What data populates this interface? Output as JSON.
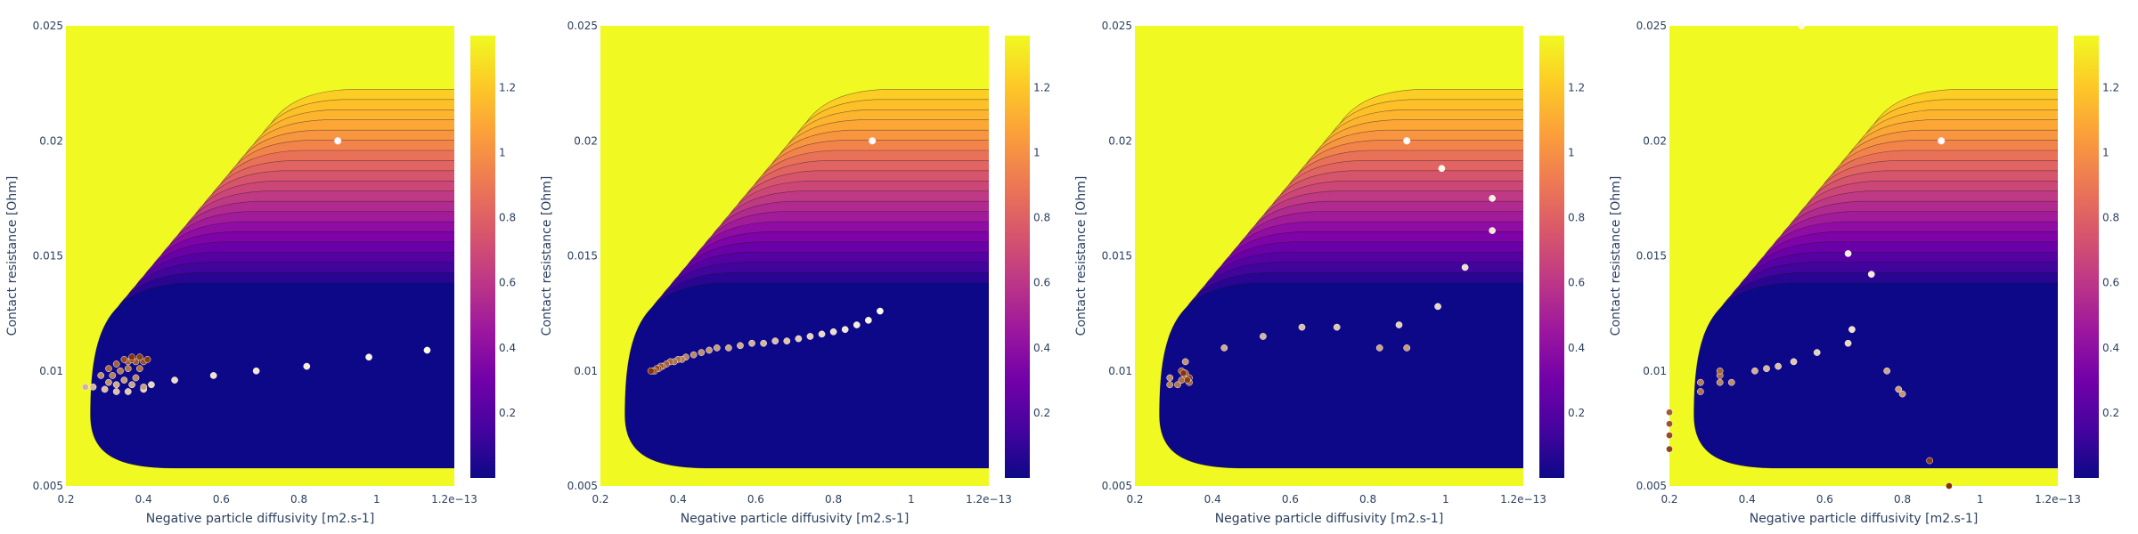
{
  "colors": {
    "contour_fills": [
      "#0d0887",
      "#2a0593",
      "#41049d",
      "#5601a4",
      "#6a00a8",
      "#7e03a8",
      "#8f0da4",
      "#a11b9b",
      "#b12a90",
      "#bf3984",
      "#cc4778",
      "#d6556d",
      "#e16462",
      "#e97158",
      "#f2844b",
      "#f89540",
      "#fca636",
      "#fdb42f",
      "#fec029",
      "#fcce25",
      "#f0f921"
    ],
    "colorbar": [
      "#0d0887",
      "#46039f",
      "#7201a8",
      "#9c179e",
      "#bd3786",
      "#d8576b",
      "#ed7953",
      "#fb9f3a",
      "#fdca26",
      "#f0f921"
    ],
    "axis_text": "#2a3f5f",
    "contour_line": "#1a1a1a"
  },
  "chart_data": [
    {
      "type": "contour-scatter",
      "xlabel": "Negative particle diffusivity [m2.s-1]",
      "ylabel": "Contact resistance [Ohm]",
      "xlim": [
        0.2,
        1.2
      ],
      "ylim": [
        0.005,
        0.025
      ],
      "x_ticks": [
        "0.2",
        "0.4",
        "0.6",
        "0.8",
        "1",
        "1.2e−13"
      ],
      "y_ticks": [
        "0.005",
        "0.01",
        "0.015",
        "0.02",
        "0.025"
      ],
      "colorbar_ticks": [
        "0.2",
        "0.4",
        "0.6",
        "0.8",
        "1",
        "1.2"
      ],
      "true_point": [
        0.9,
        0.02
      ],
      "points": [
        [
          1.13,
          0.0109
        ],
        [
          0.98,
          0.0106
        ],
        [
          0.82,
          0.0102
        ],
        [
          0.69,
          0.01
        ],
        [
          0.58,
          0.0098
        ],
        [
          0.48,
          0.0096
        ],
        [
          0.42,
          0.0094
        ],
        [
          0.4,
          0.0092
        ],
        [
          0.36,
          0.0091
        ],
        [
          0.33,
          0.0091
        ],
        [
          0.3,
          0.0092
        ],
        [
          0.27,
          0.0093
        ],
        [
          0.25,
          0.0093
        ],
        [
          0.33,
          0.0094
        ],
        [
          0.37,
          0.0094
        ],
        [
          0.4,
          0.0093
        ],
        [
          0.35,
          0.0096
        ],
        [
          0.31,
          0.0095
        ],
        [
          0.29,
          0.0098
        ],
        [
          0.38,
          0.0097
        ],
        [
          0.32,
          0.0098
        ],
        [
          0.34,
          0.01
        ],
        [
          0.36,
          0.0101
        ],
        [
          0.39,
          0.0101
        ],
        [
          0.31,
          0.0101
        ],
        [
          0.33,
          0.0103
        ],
        [
          0.36,
          0.0104
        ],
        [
          0.38,
          0.0104
        ],
        [
          0.4,
          0.0104
        ],
        [
          0.35,
          0.0105
        ],
        [
          0.37,
          0.0105
        ],
        [
          0.39,
          0.0106
        ],
        [
          0.41,
          0.0105
        ],
        [
          0.37,
          0.0106
        ]
      ]
    },
    {
      "type": "contour-scatter",
      "xlabel": "Negative particle diffusivity [m2.s-1]",
      "ylabel": "Contact resistance [Ohm]",
      "xlim": [
        0.2,
        1.2
      ],
      "ylim": [
        0.005,
        0.025
      ],
      "x_ticks": [
        "0.2",
        "0.4",
        "0.6",
        "0.8",
        "1",
        "1.2e−13"
      ],
      "y_ticks": [
        "0.005",
        "0.01",
        "0.015",
        "0.02",
        "0.025"
      ],
      "colorbar_ticks": [
        "0.2",
        "0.4",
        "0.6",
        "0.8",
        "1",
        "1.2"
      ],
      "true_point": [
        0.9,
        0.02
      ],
      "points": [
        [
          0.92,
          0.0126
        ],
        [
          0.89,
          0.0122
        ],
        [
          0.86,
          0.012
        ],
        [
          0.83,
          0.0118
        ],
        [
          0.8,
          0.0117
        ],
        [
          0.77,
          0.0116
        ],
        [
          0.74,
          0.0115
        ],
        [
          0.71,
          0.0114
        ],
        [
          0.68,
          0.0113
        ],
        [
          0.65,
          0.0113
        ],
        [
          0.62,
          0.0112
        ],
        [
          0.59,
          0.0112
        ],
        [
          0.56,
          0.0111
        ],
        [
          0.53,
          0.011
        ],
        [
          0.5,
          0.011
        ],
        [
          0.48,
          0.0109
        ],
        [
          0.46,
          0.0108
        ],
        [
          0.44,
          0.0107
        ],
        [
          0.42,
          0.0106
        ],
        [
          0.41,
          0.0105
        ],
        [
          0.4,
          0.0105
        ],
        [
          0.39,
          0.0104
        ],
        [
          0.38,
          0.0104
        ],
        [
          0.37,
          0.0103
        ],
        [
          0.36,
          0.0102
        ],
        [
          0.355,
          0.0102
        ],
        [
          0.35,
          0.0101
        ],
        [
          0.345,
          0.0101
        ],
        [
          0.34,
          0.01
        ],
        [
          0.335,
          0.01
        ],
        [
          0.33,
          0.01
        ]
      ]
    },
    {
      "type": "contour-scatter",
      "xlabel": "Negative particle diffusivity [m2.s-1]",
      "ylabel": "Contact resistance [Ohm]",
      "xlim": [
        0.2,
        1.2
      ],
      "ylim": [
        0.005,
        0.025
      ],
      "x_ticks": [
        "0.2",
        "0.4",
        "0.6",
        "0.8",
        "1",
        "1.2e−13"
      ],
      "y_ticks": [
        "0.005",
        "0.01",
        "0.015",
        "0.02",
        "0.025"
      ],
      "colorbar_ticks": [
        "0.2",
        "0.4",
        "0.6",
        "0.8",
        "1",
        "1.2"
      ],
      "true_point": [
        0.9,
        0.02
      ],
      "points": [
        [
          0.99,
          0.0188
        ],
        [
          1.12,
          0.0175
        ],
        [
          1.12,
          0.0161
        ],
        [
          1.05,
          0.0145
        ],
        [
          0.98,
          0.0128
        ],
        [
          0.88,
          0.012
        ],
        [
          0.72,
          0.0119
        ],
        [
          0.63,
          0.0119
        ],
        [
          0.53,
          0.0115
        ],
        [
          0.43,
          0.011
        ],
        [
          0.83,
          0.011
        ],
        [
          0.9,
          0.011
        ],
        [
          0.33,
          0.0104
        ],
        [
          0.29,
          0.0097
        ],
        [
          0.29,
          0.0094
        ],
        [
          0.31,
          0.0094
        ],
        [
          0.32,
          0.0096
        ],
        [
          0.34,
          0.0095
        ],
        [
          0.33,
          0.0098
        ],
        [
          0.32,
          0.01
        ],
        [
          0.33,
          0.0099
        ],
        [
          0.34,
          0.0097
        ],
        [
          0.335,
          0.0096
        ],
        [
          0.325,
          0.0099
        ]
      ]
    },
    {
      "type": "contour-scatter",
      "xlabel": "Negative particle diffusivity [m2.s-1]",
      "ylabel": "Contact resistance [Ohm]",
      "xlim": [
        0.2,
        1.2
      ],
      "ylim": [
        0.005,
        0.025
      ],
      "x_ticks": [
        "0.2",
        "0.4",
        "0.6",
        "0.8",
        "1",
        "1.2e−13"
      ],
      "y_ticks": [
        "0.005",
        "0.01",
        "0.015",
        "0.02",
        "0.025"
      ],
      "colorbar_ticks": [
        "0.2",
        "0.4",
        "0.6",
        "0.8",
        "1",
        "1.2"
      ],
      "true_point": [
        0.9,
        0.02
      ],
      "points": [
        [
          0.54,
          0.025
        ],
        [
          0.66,
          0.0151
        ],
        [
          0.72,
          0.0142
        ],
        [
          0.67,
          0.0118
        ],
        [
          0.66,
          0.0112
        ],
        [
          0.58,
          0.0108
        ],
        [
          0.52,
          0.0104
        ],
        [
          0.48,
          0.0102
        ],
        [
          0.45,
          0.0101
        ],
        [
          0.42,
          0.01
        ],
        [
          0.76,
          0.01
        ],
        [
          0.79,
          0.0092
        ],
        [
          0.8,
          0.009
        ],
        [
          0.36,
          0.0095
        ],
        [
          0.33,
          0.0095
        ],
        [
          0.28,
          0.0095
        ],
        [
          0.28,
          0.0091
        ],
        [
          0.33,
          0.0098
        ],
        [
          0.33,
          0.01
        ],
        [
          0.2,
          0.0082
        ],
        [
          0.2,
          0.0077
        ],
        [
          0.2,
          0.0072
        ],
        [
          0.2,
          0.0066
        ],
        [
          0.87,
          0.0061
        ],
        [
          0.92,
          0.005
        ]
      ]
    }
  ]
}
